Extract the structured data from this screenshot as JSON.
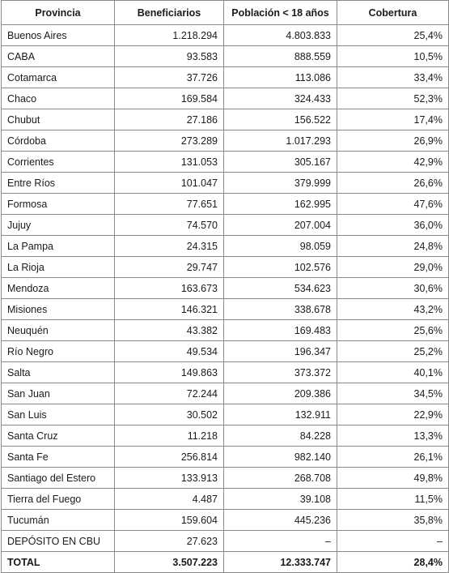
{
  "table": {
    "headers": [
      "Provincia",
      "Beneficiarios",
      "Población < 18 años",
      "Cobertura"
    ],
    "rows": [
      [
        "Buenos Aires",
        "1.218.294",
        "4.803.833",
        "25,4%"
      ],
      [
        "CABA",
        "93.583",
        "888.559",
        "10,5%"
      ],
      [
        "Cotamarca",
        "37.726",
        "113.086",
        "33,4%"
      ],
      [
        "Chaco",
        "169.584",
        "324.433",
        "52,3%"
      ],
      [
        "Chubut",
        "27.186",
        "156.522",
        "17,4%"
      ],
      [
        "Córdoba",
        "273.289",
        "1.017.293",
        "26,9%"
      ],
      [
        "Corrientes",
        "131.053",
        "305.167",
        "42,9%"
      ],
      [
        "Entre Ríos",
        "101.047",
        "379.999",
        "26,6%"
      ],
      [
        "Formosa",
        "77.651",
        "162.995",
        "47,6%"
      ],
      [
        "Jujuy",
        "74.570",
        "207.004",
        "36,0%"
      ],
      [
        "La Pampa",
        "24.315",
        "98.059",
        "24,8%"
      ],
      [
        "La Rioja",
        "29.747",
        "102.576",
        "29,0%"
      ],
      [
        "Mendoza",
        "163.673",
        "534.623",
        "30,6%"
      ],
      [
        "Misiones",
        "146.321",
        "338.678",
        "43,2%"
      ],
      [
        "Neuquén",
        "43.382",
        "169.483",
        "25,6%"
      ],
      [
        "Río Negro",
        "49.534",
        "196.347",
        "25,2%"
      ],
      [
        "Salta",
        "149.863",
        "373.372",
        "40,1%"
      ],
      [
        "San Juan",
        "72.244",
        "209.386",
        "34,5%"
      ],
      [
        "San Luis",
        "30.502",
        "132.911",
        "22,9%"
      ],
      [
        "Santa Cruz",
        "11.218",
        "84.228",
        "13,3%"
      ],
      [
        "Santa Fe",
        "256.814",
        "982.140",
        "26,1%"
      ],
      [
        "Santiago del Estero",
        "133.913",
        "268.708",
        "49,8%"
      ],
      [
        "Tierra del Fuego",
        "4.487",
        "39.108",
        "11,5%"
      ],
      [
        "Tucumán",
        "159.604",
        "445.236",
        "35,8%"
      ],
      [
        "DEPÓSITO EN CBU",
        "27.623",
        "–",
        "–"
      ]
    ],
    "total": [
      "TOTAL",
      "3.507.223",
      "12.333.747",
      "28,4%"
    ]
  }
}
